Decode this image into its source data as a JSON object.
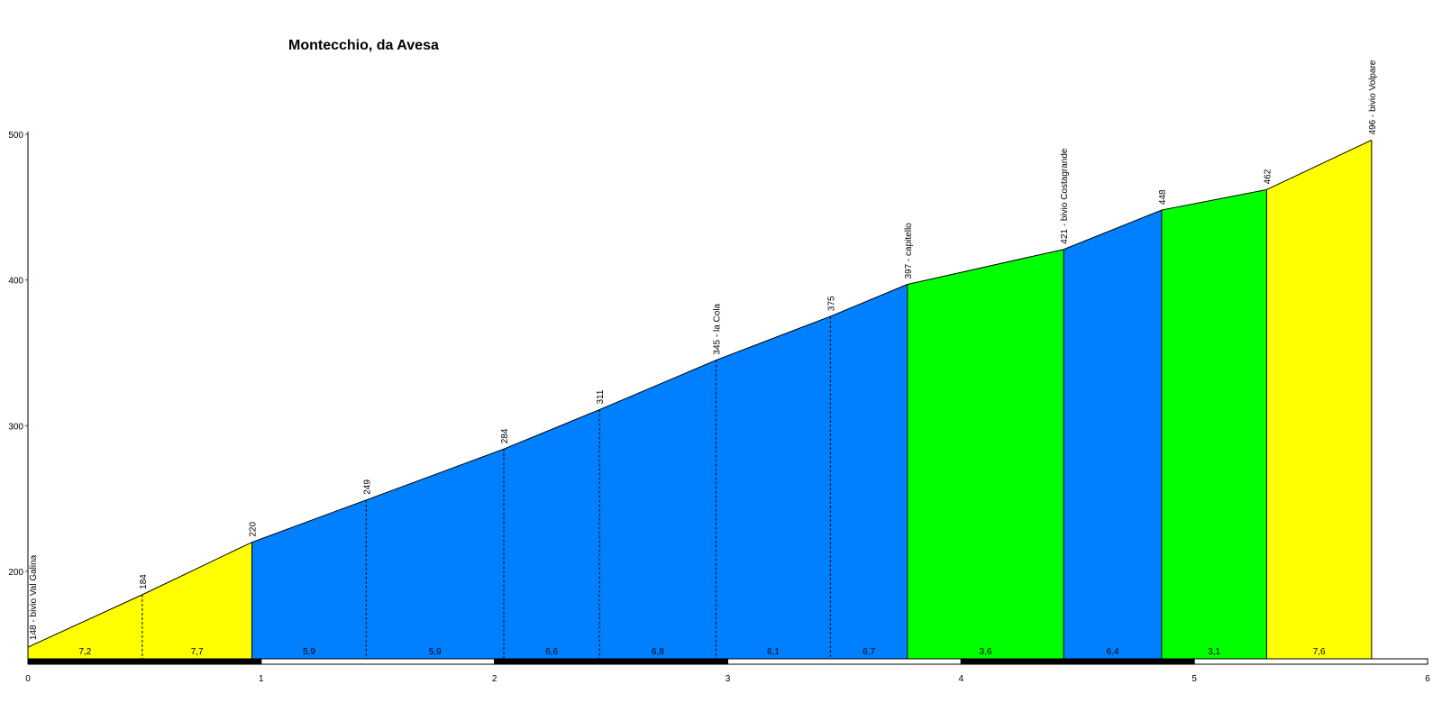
{
  "chart_data": {
    "type": "area",
    "title": "Montecchio, da Avesa",
    "xlabel": "",
    "ylabel": "",
    "xlim": [
      0,
      6
    ],
    "ylim": [
      140,
      500
    ],
    "x_ticks": [
      "0",
      "1",
      "2",
      "3",
      "4",
      "5",
      "6"
    ],
    "y_ticks": [
      "200",
      "300",
      "400",
      "500"
    ],
    "y_tick_values": [
      200,
      300,
      400,
      500
    ],
    "grid": false,
    "points": [
      {
        "x": 0.0,
        "y": 148,
        "label": "148 - bivio Val Galina"
      },
      {
        "x": 0.49,
        "y": 184,
        "label": "184"
      },
      {
        "x": 0.96,
        "y": 220,
        "label": "220"
      },
      {
        "x": 1.45,
        "y": 249,
        "label": "249"
      },
      {
        "x": 2.04,
        "y": 284,
        "label": "284"
      },
      {
        "x": 2.45,
        "y": 311,
        "label": "311"
      },
      {
        "x": 2.95,
        "y": 345,
        "label": "345 - la Cola"
      },
      {
        "x": 3.44,
        "y": 375,
        "label": "375"
      },
      {
        "x": 3.77,
        "y": 397,
        "label": "397 - capitello"
      },
      {
        "x": 4.44,
        "y": 421,
        "label": "421 - bivio Costagrande"
      },
      {
        "x": 4.86,
        "y": 448,
        "label": "448"
      },
      {
        "x": 5.31,
        "y": 462,
        "label": "462"
      },
      {
        "x": 5.76,
        "y": 496,
        "label": "496 - bivio Volpare"
      }
    ],
    "segments": [
      {
        "x0": 0.0,
        "x1": 0.49,
        "gradient": "7,2",
        "color": "#ffff00"
      },
      {
        "x0": 0.49,
        "x1": 0.96,
        "gradient": "7,7",
        "color": "#ffff00"
      },
      {
        "x0": 0.96,
        "x1": 1.45,
        "gradient": "5,9",
        "color": "#0080ff"
      },
      {
        "x0": 1.45,
        "x1": 2.04,
        "gradient": "5,9",
        "color": "#0080ff"
      },
      {
        "x0": 2.04,
        "x1": 2.45,
        "gradient": "6,6",
        "color": "#0080ff"
      },
      {
        "x0": 2.45,
        "x1": 2.95,
        "gradient": "6,8",
        "color": "#0080ff"
      },
      {
        "x0": 2.95,
        "x1": 3.44,
        "gradient": "6,1",
        "color": "#0080ff"
      },
      {
        "x0": 3.44,
        "x1": 3.77,
        "gradient": "6,7",
        "color": "#0080ff"
      },
      {
        "x0": 3.77,
        "x1": 4.44,
        "gradient": "3,6",
        "color": "#00ff00"
      },
      {
        "x0": 4.44,
        "x1": 4.86,
        "gradient": "6,4",
        "color": "#0080ff"
      },
      {
        "x0": 4.86,
        "x1": 5.31,
        "gradient": "3,1",
        "color": "#00ff00"
      },
      {
        "x0": 5.31,
        "x1": 5.76,
        "gradient": "7,6",
        "color": "#ffff00"
      }
    ],
    "colors": {
      "yellow": "#ffff00",
      "blue": "#0080ff",
      "green": "#00ff00",
      "axis": "#000000",
      "ytick_mark": "#cc0000"
    }
  }
}
